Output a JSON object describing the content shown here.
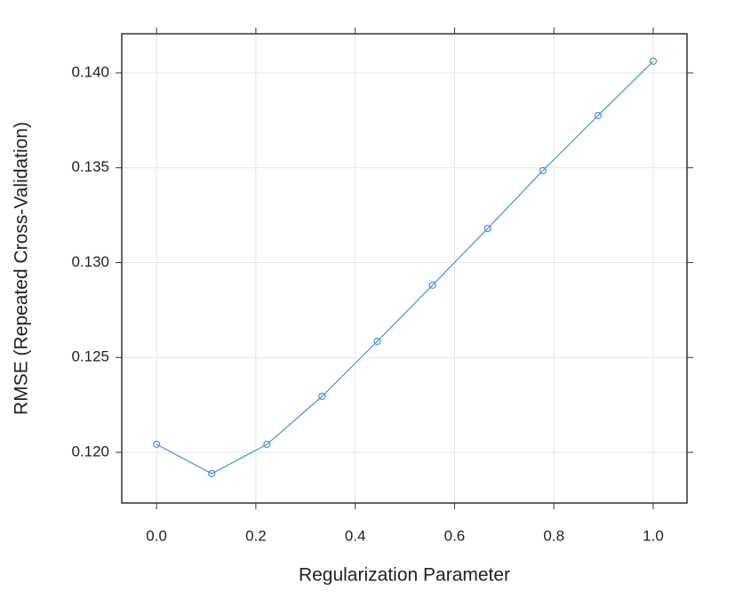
{
  "chart_data": {
    "type": "line",
    "xlabel": "Regularization Parameter",
    "ylabel": "RMSE (Repeated Cross-Validation)",
    "x": [
      0,
      0.1111,
      0.2222,
      0.3333,
      0.4444,
      0.5556,
      0.6667,
      0.7778,
      0.8889,
      1
    ],
    "series": [
      {
        "color": "#4a90d9",
        "values": [
          0.12042,
          0.11888,
          0.12042,
          0.12295,
          0.12585,
          0.12881,
          0.1318,
          0.13485,
          0.13775,
          0.14061
        ]
      }
    ],
    "xlim": [
      -0.07,
      1.068
    ],
    "ylim": [
      0.11733,
      0.14206
    ],
    "xticks": [
      {
        "value": 0,
        "label": "0.0"
      },
      0.2,
      0.4,
      0.6,
      0.8,
      {
        "value": 1,
        "label": "1.0"
      }
    ],
    "yticks": [
      {
        "value": 0.12,
        "label": "0.120"
      },
      0.125,
      {
        "value": 0.13,
        "label": "0.130"
      },
      0.135,
      {
        "value": 0.14,
        "label": "0.140"
      }
    ],
    "grid": true
  }
}
